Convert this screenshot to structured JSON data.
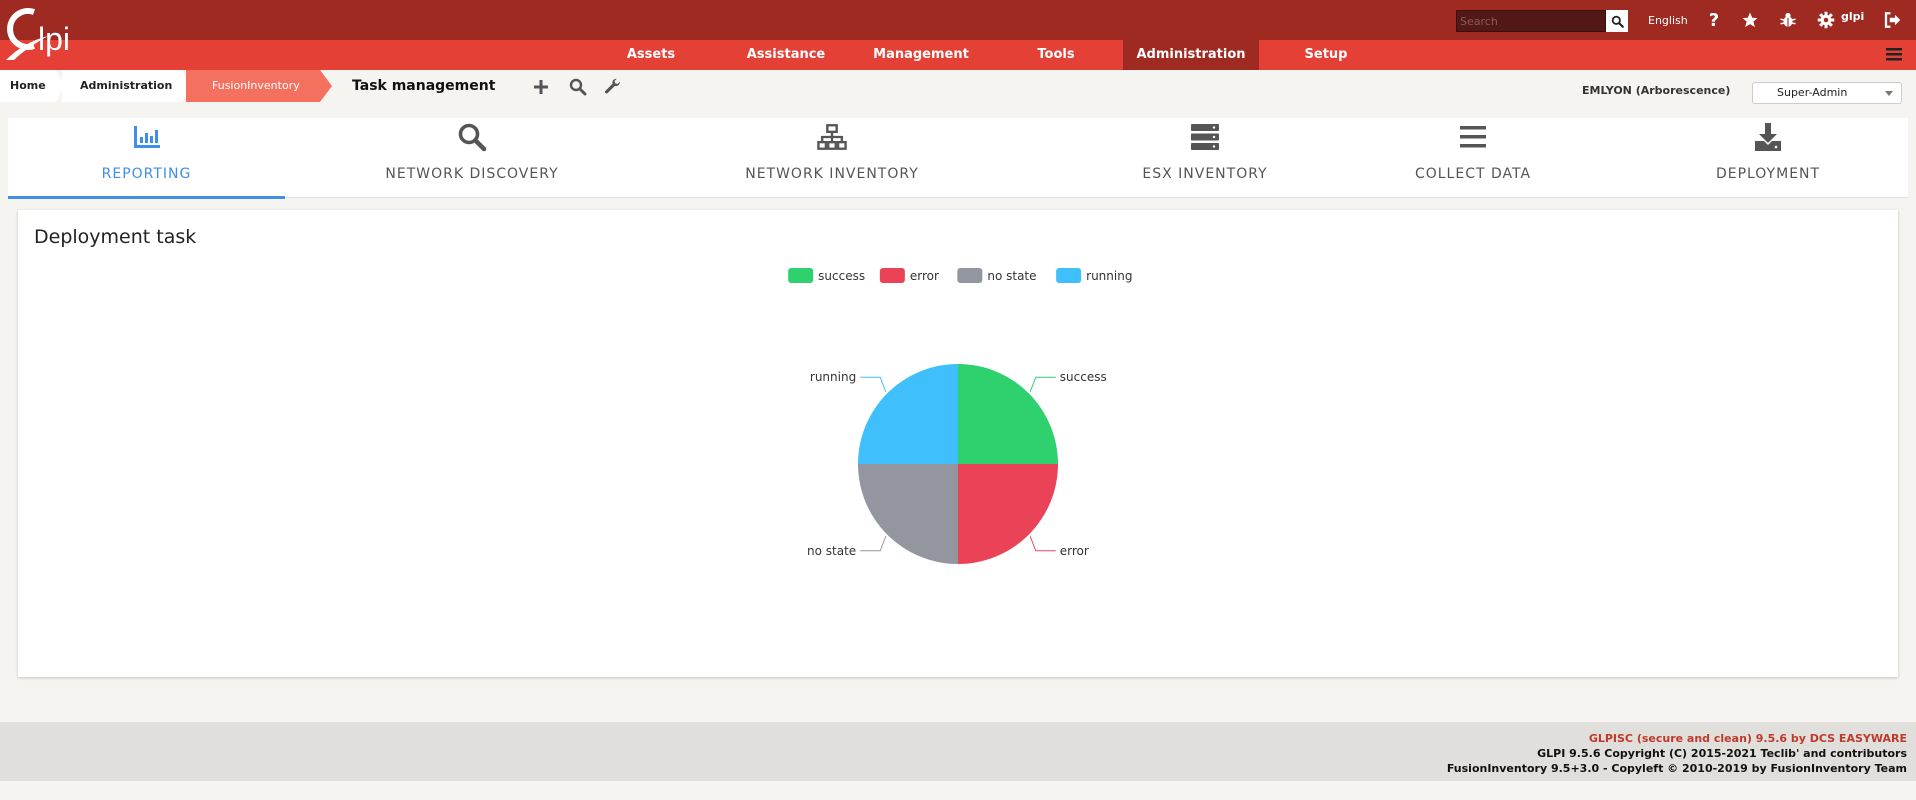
{
  "app": {
    "logo_text": "Glpi"
  },
  "topbar": {
    "search_placeholder": "Search",
    "language": "English",
    "user": "glpi"
  },
  "nav": {
    "items": [
      {
        "label": "Assets"
      },
      {
        "label": "Assistance"
      },
      {
        "label": "Management"
      },
      {
        "label": "Tools"
      },
      {
        "label": "Administration",
        "active": true
      },
      {
        "label": "Setup"
      }
    ]
  },
  "breadcrumb": {
    "home": "Home",
    "admin": "Administration",
    "plugin": "FusionInventory",
    "title": "Task management"
  },
  "entity": "EMLYON (Arborescence)",
  "profile": "Super-Admin",
  "tabs": [
    {
      "label": "REPORTING",
      "icon": "bar-chart-icon",
      "active": true
    },
    {
      "label": "NETWORK DISCOVERY",
      "icon": "search-icon"
    },
    {
      "label": "NETWORK INVENTORY",
      "icon": "network-icon"
    },
    {
      "label": "ESX INVENTORY",
      "icon": "server-icon"
    },
    {
      "label": "COLLECT DATA",
      "icon": "list-icon"
    },
    {
      "label": "DEPLOYMENT",
      "icon": "download-icon"
    }
  ],
  "panel": {
    "title": "Deployment task"
  },
  "chart_data": {
    "type": "pie",
    "title": "",
    "legend_position": "top",
    "slices": [
      {
        "label": "success",
        "value": 25,
        "color": "#2fd06e"
      },
      {
        "label": "error",
        "value": 25,
        "color": "#ea4358"
      },
      {
        "label": "no state",
        "value": 25,
        "color": "#93969e"
      },
      {
        "label": "running",
        "value": 25,
        "color": "#3fbffb"
      }
    ]
  },
  "footer": {
    "line1": "GLPISC (secure and clean) 9.5.6 by DCS EASYWARE",
    "line2": "GLPI 9.5.6 Copyright (C) 2015-2021 Teclib' and contributors",
    "line3": "FusionInventory 9.5+3.0 - Copyleft © 2010-2019 by FusionInventory Team"
  }
}
